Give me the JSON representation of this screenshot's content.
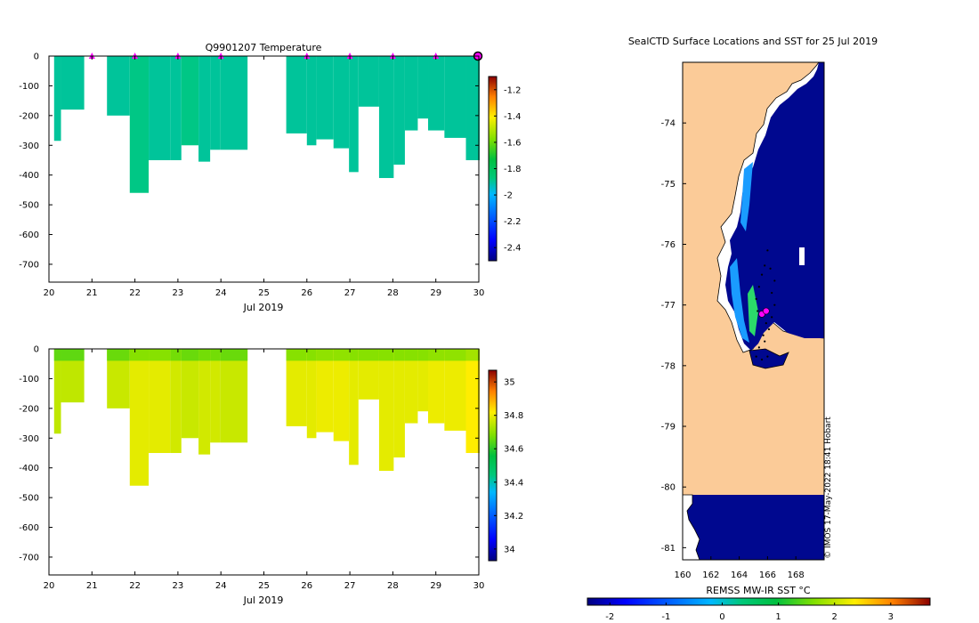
{
  "chart_data": [
    {
      "type": "heatmap",
      "id": "temperature",
      "title": "Q9901207  Temperature",
      "xlabel": "Jul 2019",
      "ylabel": "",
      "x_ticks": [
        20,
        21,
        22,
        23,
        24,
        25,
        26,
        27,
        28,
        29,
        30
      ],
      "y_ticks": [
        0,
        -100,
        -200,
        -300,
        -400,
        -500,
        -600,
        -700
      ],
      "xlim": [
        20,
        30
      ],
      "ylim": [
        -760,
        0
      ],
      "colorbar": {
        "ticks": [
          -1.2,
          -1.4,
          -1.6,
          -1.8,
          -2,
          -2.2,
          -2.4
        ],
        "tick_labels": [
          "-1.2",
          "-1.4",
          "-1.6",
          "-1.8",
          "-2",
          "-2.2",
          "-2.4"
        ],
        "range": [
          -2.5,
          -1.1
        ]
      },
      "profiles": [
        {
          "x0": 20.12,
          "x1": 20.28,
          "depth": 285,
          "value": -1.9
        },
        {
          "x0": 20.28,
          "x1": 20.82,
          "depth": 180,
          "value": -1.9
        },
        {
          "x0": 21.35,
          "x1": 21.88,
          "depth": 200,
          "value": -1.9
        },
        {
          "x0": 21.88,
          "x1": 22.32,
          "depth": 460,
          "value": -1.88
        },
        {
          "x0": 22.32,
          "x1": 22.82,
          "depth": 350,
          "value": -1.9
        },
        {
          "x0": 22.82,
          "x1": 23.08,
          "depth": 350,
          "value": -1.9
        },
        {
          "x0": 23.08,
          "x1": 23.48,
          "depth": 300,
          "value": -1.88
        },
        {
          "x0": 23.48,
          "x1": 23.75,
          "depth": 355,
          "value": -1.9
        },
        {
          "x0": 23.75,
          "x1": 23.98,
          "depth": 315,
          "value": -1.9
        },
        {
          "x0": 23.98,
          "x1": 24.62,
          "depth": 315,
          "value": -1.9
        },
        {
          "x0": 25.52,
          "x1": 26.0,
          "depth": 260,
          "value": -1.9
        },
        {
          "x0": 26.0,
          "x1": 26.22,
          "depth": 300,
          "value": -1.9
        },
        {
          "x0": 26.22,
          "x1": 26.62,
          "depth": 280,
          "value": -1.9
        },
        {
          "x0": 26.62,
          "x1": 26.98,
          "depth": 310,
          "value": -1.9
        },
        {
          "x0": 26.98,
          "x1": 27.2,
          "depth": 390,
          "value": -1.9
        },
        {
          "x0": 27.2,
          "x1": 27.68,
          "depth": 170,
          "value": -1.9
        },
        {
          "x0": 27.68,
          "x1": 28.02,
          "depth": 410,
          "value": -1.9
        },
        {
          "x0": 28.02,
          "x1": 28.28,
          "depth": 365,
          "value": -1.9
        },
        {
          "x0": 28.28,
          "x1": 28.58,
          "depth": 250,
          "value": -1.9
        },
        {
          "x0": 28.58,
          "x1": 28.82,
          "depth": 210,
          "value": -1.9
        },
        {
          "x0": 28.82,
          "x1": 29.2,
          "depth": 250,
          "value": -1.9
        },
        {
          "x0": 29.2,
          "x1": 29.7,
          "depth": 275,
          "value": -1.9
        },
        {
          "x0": 29.7,
          "x1": 30.02,
          "depth": 350,
          "value": -1.9
        }
      ],
      "surface_markers": [
        21,
        22,
        23,
        24,
        26,
        27,
        28,
        29,
        30
      ]
    },
    {
      "type": "heatmap",
      "id": "salinity",
      "title": "",
      "xlabel": "Jul 2019",
      "ylabel": "",
      "x_ticks": [
        20,
        21,
        22,
        23,
        24,
        25,
        26,
        27,
        28,
        29,
        30
      ],
      "y_ticks": [
        0,
        -100,
        -200,
        -300,
        -400,
        -500,
        -600,
        -700
      ],
      "xlim": [
        20,
        30
      ],
      "ylim": [
        -760,
        0
      ],
      "colorbar": {
        "ticks": [
          35,
          34.8,
          34.6,
          34.4,
          34.2,
          34
        ],
        "tick_labels": [
          "35",
          "34.8",
          "34.6",
          "34.4",
          "34.2",
          "34"
        ],
        "range": [
          33.93,
          35.07
        ]
      },
      "profiles": [
        {
          "x0": 20.12,
          "x1": 20.28,
          "depth": 285,
          "value": 34.75
        },
        {
          "x0": 20.28,
          "x1": 20.82,
          "depth": 180,
          "value": 34.75
        },
        {
          "x0": 21.35,
          "x1": 21.88,
          "depth": 200,
          "value": 34.76
        },
        {
          "x0": 21.88,
          "x1": 22.32,
          "depth": 460,
          "value": 34.79
        },
        {
          "x0": 22.32,
          "x1": 22.82,
          "depth": 350,
          "value": 34.79
        },
        {
          "x0": 22.82,
          "x1": 23.08,
          "depth": 350,
          "value": 34.77
        },
        {
          "x0": 23.08,
          "x1": 23.48,
          "depth": 300,
          "value": 34.76
        },
        {
          "x0": 23.48,
          "x1": 23.75,
          "depth": 355,
          "value": 34.77
        },
        {
          "x0": 23.75,
          "x1": 23.98,
          "depth": 315,
          "value": 34.77
        },
        {
          "x0": 23.98,
          "x1": 24.62,
          "depth": 315,
          "value": 34.76
        },
        {
          "x0": 25.52,
          "x1": 26.0,
          "depth": 260,
          "value": 34.79
        },
        {
          "x0": 26.0,
          "x1": 26.22,
          "depth": 300,
          "value": 34.79
        },
        {
          "x0": 26.22,
          "x1": 26.62,
          "depth": 280,
          "value": 34.8
        },
        {
          "x0": 26.62,
          "x1": 26.98,
          "depth": 310,
          "value": 34.8
        },
        {
          "x0": 26.98,
          "x1": 27.2,
          "depth": 390,
          "value": 34.79
        },
        {
          "x0": 27.2,
          "x1": 27.68,
          "depth": 170,
          "value": 34.79
        },
        {
          "x0": 27.68,
          "x1": 28.02,
          "depth": 410,
          "value": 34.79
        },
        {
          "x0": 28.02,
          "x1": 28.28,
          "depth": 365,
          "value": 34.79
        },
        {
          "x0": 28.28,
          "x1": 28.58,
          "depth": 250,
          "value": 34.79
        },
        {
          "x0": 28.58,
          "x1": 28.82,
          "depth": 210,
          "value": 34.79
        },
        {
          "x0": 28.82,
          "x1": 29.2,
          "depth": 250,
          "value": 34.8
        },
        {
          "x0": 29.2,
          "x1": 29.7,
          "depth": 275,
          "value": 34.8
        },
        {
          "x0": 29.7,
          "x1": 30.02,
          "depth": 350,
          "value": 34.82
        }
      ],
      "surface_layer": {
        "depth": 40,
        "value_offset": -0.1
      }
    },
    {
      "type": "heatmap",
      "id": "sst-map",
      "title": "SealCTD Surface Locations and SST for 25 Jul 2019",
      "xlabel": "REMSS MW-IR SST °C",
      "lon_ticks": [
        160,
        162,
        164,
        166,
        168
      ],
      "lat_ticks": [
        -74,
        -75,
        -76,
        -77,
        -78,
        -79,
        -80,
        -81
      ],
      "lon_range": [
        160,
        170
      ],
      "lat_range": [
        -81.2,
        -73.0
      ],
      "colorbar": {
        "ticks": [
          -2,
          -1,
          0,
          1,
          2,
          3
        ],
        "tick_labels": [
          "-2",
          "-1",
          "0",
          "1",
          "2",
          "3"
        ],
        "range": [
          -2.4,
          3.7
        ]
      },
      "credit": "© IMOS 17-May-2022 18:41 Hobart",
      "sst_open_water": -1.85,
      "sst_coastal": -1.1,
      "land_color": "#fbcb98",
      "seal_track": [
        [
          166.0,
          -76.1
        ],
        [
          165.8,
          -76.35
        ],
        [
          165.6,
          -76.5
        ],
        [
          165.4,
          -76.7
        ],
        [
          165.2,
          -76.9
        ],
        [
          165.3,
          -77.1
        ],
        [
          165.6,
          -77.15
        ],
        [
          165.9,
          -77.3
        ],
        [
          165.7,
          -77.5
        ],
        [
          165.4,
          -77.7
        ],
        [
          165.2,
          -77.85
        ],
        [
          165.6,
          -77.9
        ],
        [
          166.0,
          -77.85
        ],
        [
          165.8,
          -77.6
        ],
        [
          166.1,
          -77.4
        ],
        [
          166.3,
          -77.2
        ],
        [
          166.5,
          -77.0
        ],
        [
          166.3,
          -76.8
        ],
        [
          166.5,
          -76.6
        ],
        [
          166.2,
          -76.4
        ]
      ],
      "highlight_points": [
        [
          165.6,
          -77.15
        ],
        [
          165.9,
          -77.1
        ]
      ]
    }
  ]
}
